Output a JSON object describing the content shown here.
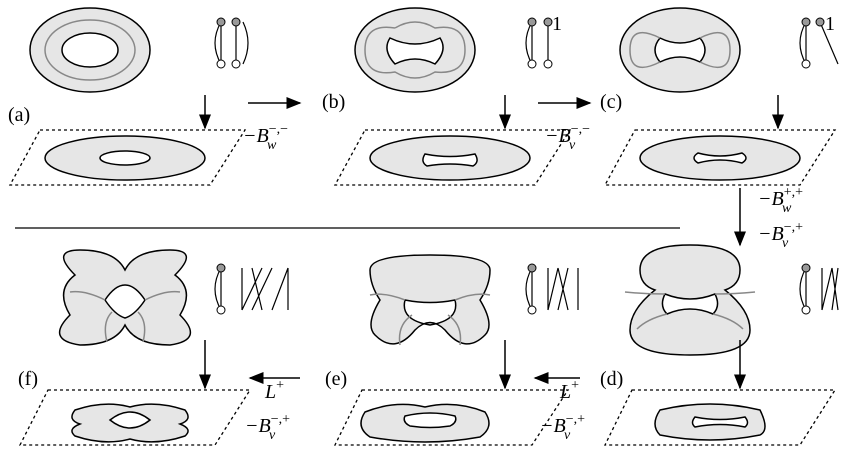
{
  "panels": [
    {
      "label": "(a)"
    },
    {
      "label": "(b)"
    },
    {
      "label": "(c)"
    },
    {
      "label": "(d)"
    },
    {
      "label": "(e)"
    },
    {
      "label": "(f)"
    }
  ],
  "markers": [
    "1",
    "1"
  ],
  "transitions": [
    {
      "terms": [
        {
          "base": "−B",
          "sub": "w",
          "sup": "−,−"
        }
      ]
    },
    {
      "terms": [
        {
          "base": "−B",
          "sub": "v",
          "sup": "−,−"
        }
      ]
    },
    {
      "terms": [
        {
          "base": "−B",
          "sub": "w",
          "sup": "+,+"
        },
        {
          "base": "−B",
          "sub": "v",
          "sup": "−,+"
        }
      ]
    },
    {
      "terms": [
        {
          "base": "L",
          "sup": "+"
        },
        {
          "base": "−B",
          "sub": "v",
          "sup": "−,+"
        }
      ]
    },
    {
      "terms": [
        {
          "base": "L",
          "sup": "+"
        },
        {
          "base": "−B",
          "sub": "v",
          "sup": "−,+"
        }
      ]
    }
  ]
}
